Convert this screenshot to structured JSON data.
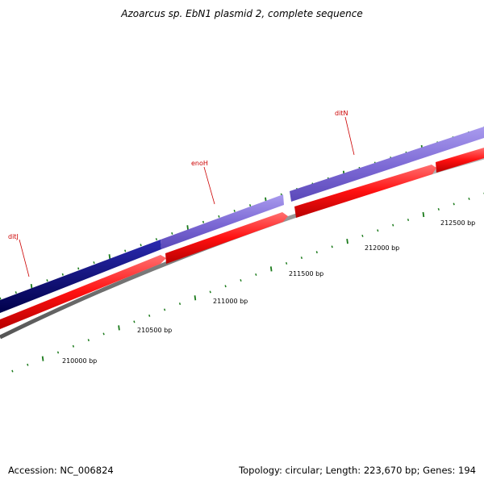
{
  "title": "Azoarcus sp. EbN1 plasmid 2, complete sequence",
  "footer": {
    "accession": "Accession: NC_006824",
    "summary": "Topology: circular; Length: 223,670 bp; Genes: 194"
  },
  "colors": {
    "reverse_strand": "#7b68d4",
    "reverse_highlight": "#00007a",
    "forward_strand": "#ee1111",
    "backbone": "#8a8a8a",
    "tick": "#1a7a1a",
    "gene_label": "#cc0000"
  },
  "gene_labels": [
    {
      "text": "ditJ"
    },
    {
      "text": "enoH"
    },
    {
      "text": "ditN"
    }
  ],
  "position_labels": [
    {
      "text": "210000 bp"
    },
    {
      "text": "210500 bp"
    },
    {
      "text": "211000 bp"
    },
    {
      "text": "211500 bp"
    },
    {
      "text": "212000 bp"
    },
    {
      "text": "212500 bp"
    }
  ]
}
